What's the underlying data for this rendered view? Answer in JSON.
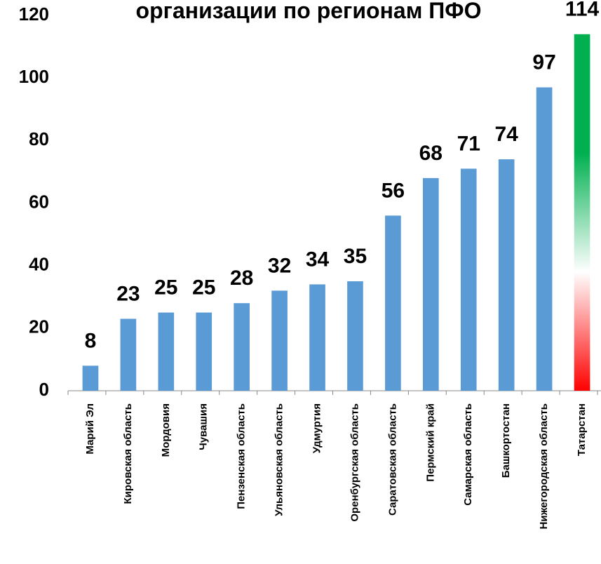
{
  "chart_data": {
    "type": "bar",
    "title": "организации по регионам ПФО",
    "categories": [
      "Марий Эл",
      "Кировская область",
      "Мордовия",
      "Чувашия",
      "Пензенская область",
      "Ульяновская область",
      "Удмуртия",
      "Оренбургская область",
      "Саратовская область",
      "Пермский край",
      "Самарская область",
      "Башкортостан",
      "Нижегородская область",
      "Татарстан"
    ],
    "values": [
      8,
      23,
      25,
      25,
      28,
      32,
      34,
      35,
      56,
      68,
      71,
      74,
      97,
      114
    ],
    "colors": [
      "#5b9bd5",
      "#5b9bd5",
      "#5b9bd5",
      "#5b9bd5",
      "#5b9bd5",
      "#5b9bd5",
      "#5b9bd5",
      "#5b9bd5",
      "#5b9bd5",
      "#5b9bd5",
      "#5b9bd5",
      "#5b9bd5",
      "#5b9bd5",
      [
        "#00b050",
        "#00b050",
        "#ffffff",
        "#ff0000"
      ]
    ],
    "ylim": [
      0,
      120
    ],
    "yticks": [
      0,
      20,
      40,
      60,
      80,
      100,
      120
    ],
    "grid": false
  }
}
